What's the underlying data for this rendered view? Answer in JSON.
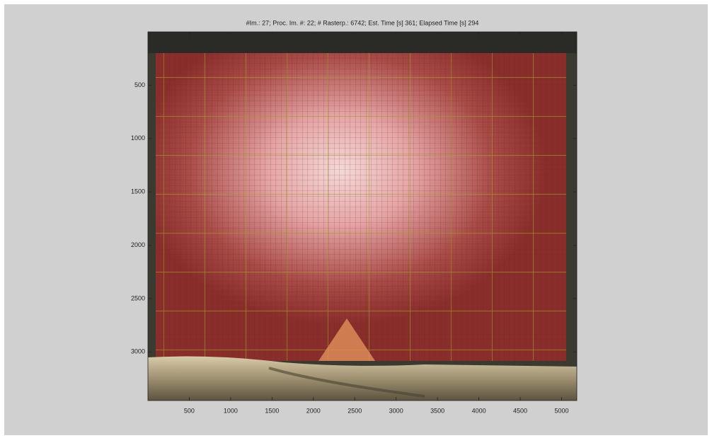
{
  "chart_data": {
    "type": "image",
    "title": "#Im.: 27; Proc. Im. #: 22; # Rasterp.: 6742; Est. Time [s] 361;  Elapsed Time [s] 294",
    "xlim": [
      0,
      5184
    ],
    "xticks": [
      500,
      1000,
      1500,
      2000,
      2500,
      3000,
      3500,
      4000,
      4500,
      5000
    ],
    "ylim": [
      0,
      3456
    ],
    "yticks": [
      500,
      1000,
      1500,
      2000,
      2500,
      3000
    ],
    "y_direction": "reverse",
    "box": true
  }
}
